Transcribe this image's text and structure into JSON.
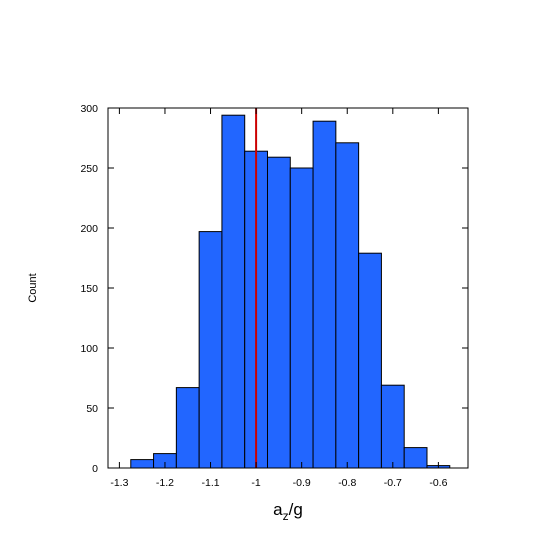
{
  "chart_data": {
    "type": "bar",
    "title": "",
    "xlabel": "a",
    "xlabel_sub": "z",
    "xlabel_suffix": "/g",
    "ylabel": "Count",
    "bin_edges": [
      -1.275,
      -1.225,
      -1.175,
      -1.125,
      -1.075,
      -1.025,
      -0.975,
      -0.925,
      -0.875,
      -0.825,
      -0.775,
      -0.725,
      -0.675,
      -0.625,
      -0.575
    ],
    "values": [
      7,
      12,
      67,
      197,
      294,
      264,
      259,
      250,
      289,
      271,
      179,
      69,
      17,
      2
    ],
    "xlim": [
      -1.325,
      -0.535
    ],
    "ylim": [
      0,
      300
    ],
    "xticks": [
      -1.3,
      -1.2,
      -1.1,
      -1,
      -0.9,
      -0.8,
      -0.7,
      -0.6
    ],
    "xtick_labels": [
      "-1.3",
      "-1.2",
      "-1.1",
      "-1",
      "-0.9",
      "-0.8",
      "-0.7",
      "-0.6"
    ],
    "yticks": [
      0,
      50,
      100,
      150,
      200,
      250,
      300
    ],
    "ytick_labels": [
      "0",
      "50",
      "100",
      "150",
      "200",
      "250",
      "300"
    ],
    "reference_line_x": -1,
    "bar_color": "#2266ff",
    "reference_line_color": "#cc0000",
    "grid": false,
    "legend": "none"
  }
}
